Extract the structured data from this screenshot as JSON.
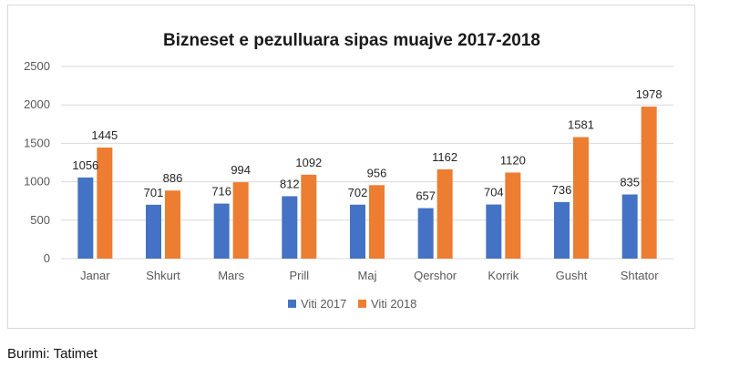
{
  "chart_data": {
    "type": "bar",
    "title": "Bizneset e pezulluara sipas muajve 2017-2018",
    "xlabel": "",
    "ylabel": "",
    "ylim": [
      0,
      2500
    ],
    "yticks": [
      0,
      500,
      1000,
      1500,
      2000,
      2500
    ],
    "grid": true,
    "legend_position": "bottom",
    "categories": [
      "Janar",
      "Shkurt",
      "Mars",
      "Prill",
      "Maj",
      "Qershor",
      "Korrik",
      "Gusht",
      "Shtator"
    ],
    "series": [
      {
        "name": "Viti 2017",
        "color": "#4472c4",
        "values": [
          1056,
          701,
          716,
          812,
          702,
          657,
          704,
          736,
          835
        ]
      },
      {
        "name": "Viti 2018",
        "color": "#ed7d31",
        "values": [
          1445,
          886,
          994,
          1092,
          956,
          1162,
          1120,
          1581,
          1978
        ]
      }
    ]
  },
  "source": "Burimi: Tatimet"
}
